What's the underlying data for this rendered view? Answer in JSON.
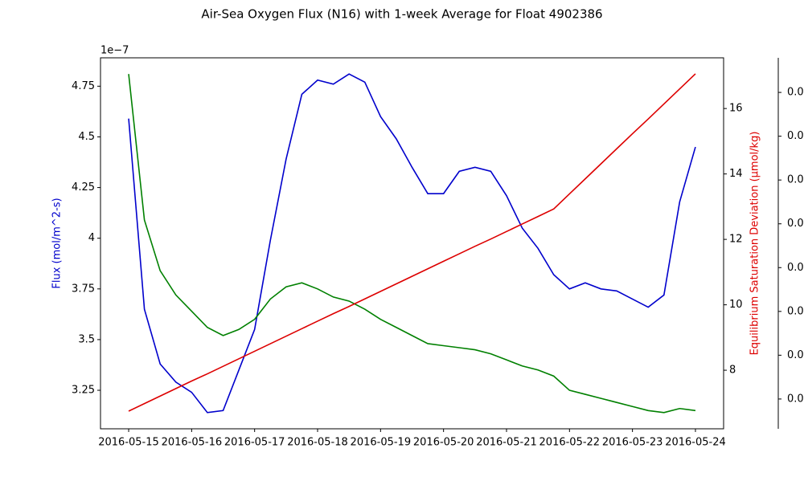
{
  "chart_data": {
    "type": "line",
    "title": "Air-Sea Oxygen Flux (N16) with 1-week Average for Float 4902386",
    "y_label": "Flux (mol/m^2-s)",
    "y_offset_label": "1e−7",
    "y2_label": "Equilibrium Saturation Deviation (μmol/kg)",
    "y_label_color": "#0000cc",
    "y2_label_color": "#dd0000",
    "x": [
      "2016-05-15T00:00",
      "2016-05-15T06:00",
      "2016-05-15T12:00",
      "2016-05-15T18:00",
      "2016-05-16T00:00",
      "2016-05-16T06:00",
      "2016-05-16T12:00",
      "2016-05-16T18:00",
      "2016-05-17T00:00",
      "2016-05-17T06:00",
      "2016-05-17T12:00",
      "2016-05-17T18:00",
      "2016-05-18T00:00",
      "2016-05-18T06:00",
      "2016-05-18T12:00",
      "2016-05-18T18:00",
      "2016-05-19T00:00",
      "2016-05-19T06:00",
      "2016-05-19T12:00",
      "2016-05-19T18:00",
      "2016-05-20T00:00",
      "2016-05-20T06:00",
      "2016-05-20T12:00",
      "2016-05-20T18:00",
      "2016-05-21T00:00",
      "2016-05-21T06:00",
      "2016-05-21T12:00",
      "2016-05-21T18:00",
      "2016-05-22T00:00",
      "2016-05-22T06:00",
      "2016-05-22T12:00",
      "2016-05-22T18:00",
      "2016-05-23T00:00",
      "2016-05-23T06:00",
      "2016-05-23T12:00",
      "2016-05-23T18:00",
      "2016-05-24T00:00"
    ],
    "series": [
      {
        "color": "#0000cc",
        "axis": "y",
        "values": [
          4.59,
          3.65,
          3.38,
          3.29,
          3.24,
          3.14,
          3.15,
          3.35,
          3.55,
          3.99,
          4.39,
          4.71,
          4.78,
          4.76,
          4.81,
          4.77,
          4.6,
          4.49,
          4.35,
          4.22,
          4.22,
          4.33,
          4.35,
          4.33,
          4.21,
          4.05,
          3.95,
          3.82,
          3.75,
          3.78,
          3.75,
          3.74,
          3.7,
          3.66,
          3.72,
          4.18,
          4.45
        ]
      },
      {
        "color": "#008000",
        "axis": "y",
        "values": [
          4.81,
          4.09,
          3.84,
          3.72,
          3.64,
          3.56,
          3.52,
          3.55,
          3.6,
          3.7,
          3.76,
          3.78,
          3.75,
          3.71,
          3.69,
          3.65,
          3.6,
          3.56,
          3.52,
          3.48,
          3.47,
          3.46,
          3.45,
          3.43,
          3.4,
          3.37,
          3.35,
          3.32,
          3.25,
          3.23,
          3.21,
          3.19,
          3.17,
          3.15,
          3.14,
          3.16,
          3.15
        ]
      },
      {
        "color": "#dd0000",
        "axis": "y2",
        "values": [
          6.75,
          6.98,
          7.21,
          7.44,
          7.67,
          7.89,
          8.12,
          8.35,
          8.58,
          8.81,
          9.04,
          9.27,
          9.5,
          9.73,
          9.95,
          10.18,
          10.41,
          10.64,
          10.87,
          11.1,
          11.33,
          11.56,
          11.79,
          12.01,
          12.24,
          12.47,
          12.7,
          12.93,
          13.39,
          13.85,
          14.31,
          14.77,
          15.23,
          15.68,
          16.14,
          16.6,
          17.06
        ]
      }
    ],
    "xlim": [
      "2016-05-14T13:16",
      "2016-05-24T10:44"
    ],
    "xticks": [
      "2016-05-15",
      "2016-05-16",
      "2016-05-17",
      "2016-05-18",
      "2016-05-19",
      "2016-05-20",
      "2016-05-21",
      "2016-05-22",
      "2016-05-23",
      "2016-05-24"
    ],
    "ylim": [
      3.06,
      4.89
    ],
    "yticks": [
      3.25,
      3.5,
      3.75,
      4.0,
      4.25,
      4.5,
      4.75
    ],
    "y2lim": [
      6.21,
      17.55
    ],
    "y2ticks": [
      8,
      10,
      12,
      14,
      16
    ],
    "y3lim": [
      0.32,
      8.79
    ],
    "y3ticks": [
      {
        "value": 1,
        "label": "0.0"
      },
      {
        "value": 2,
        "label": "0.0"
      },
      {
        "value": 3,
        "label": "0.0"
      },
      {
        "value": 4,
        "label": "0.0"
      },
      {
        "value": 5,
        "label": "0.0"
      },
      {
        "value": 6,
        "label": "0.0"
      },
      {
        "value": 7,
        "label": "0.0"
      },
      {
        "value": 8,
        "label": "0.0"
      }
    ]
  }
}
